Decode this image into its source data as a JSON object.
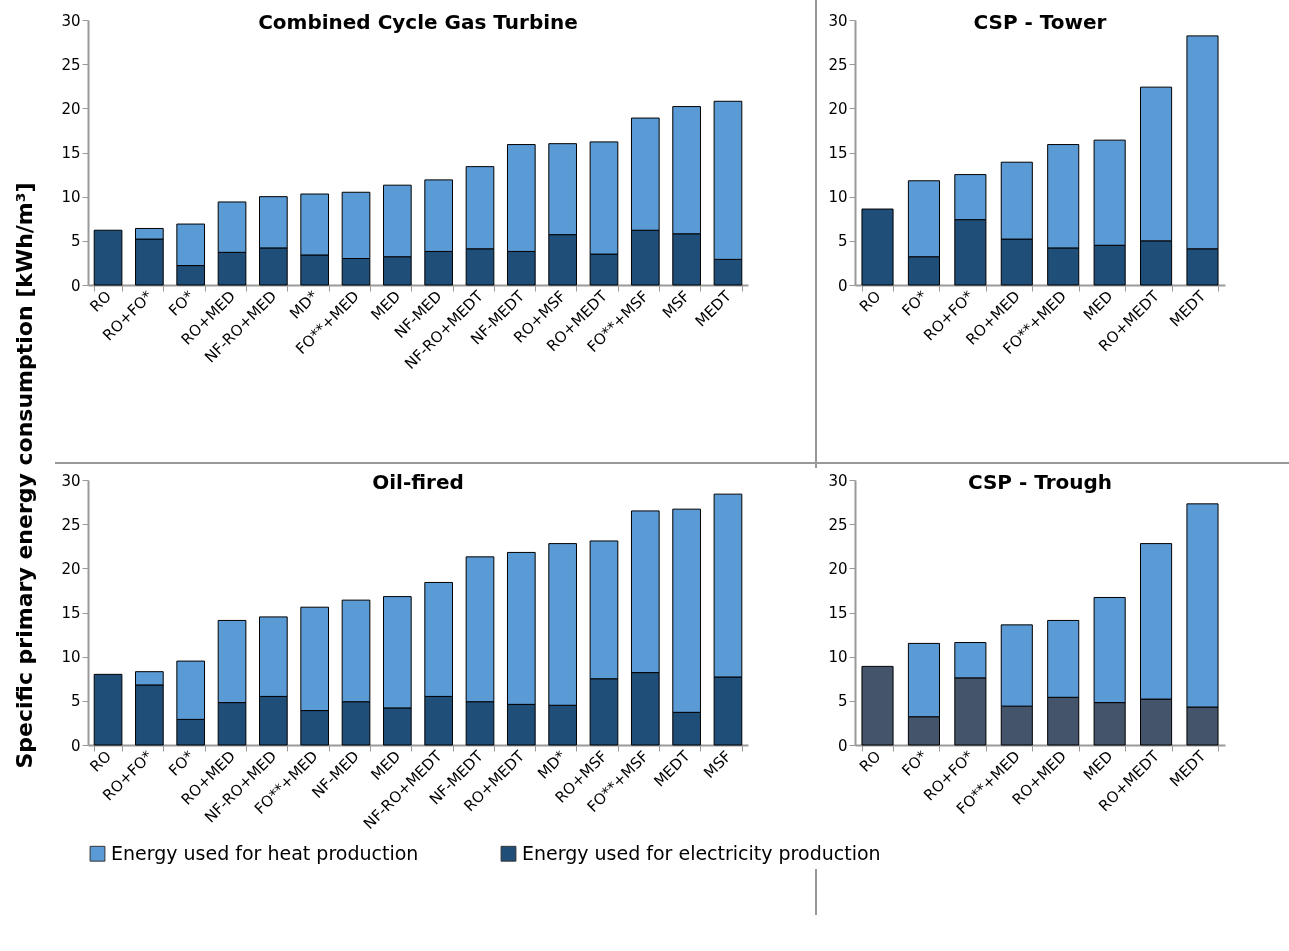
{
  "chart_data": [
    {
      "type": "bar",
      "title": "Combined Cycle Gas Turbine",
      "ylabel": "Specific primary energy consumption [kWh/m³]",
      "stacked": true,
      "grid": false,
      "legend": false,
      "ylim": [
        0,
        30
      ],
      "yticks": [
        0,
        5,
        10,
        15,
        20,
        25,
        30
      ],
      "categories": [
        "RO",
        "RO+FO*",
        "FO*",
        "RO+MED",
        "NF-RO+MED",
        "MD*",
        "FO**+MED",
        "MED",
        "NF-MED",
        "NF-RO+MEDT",
        "NF-MEDT",
        "RO+MSF",
        "RO+MEDT",
        "FO**+MSF",
        "MSF",
        "MEDT"
      ],
      "series": [
        {
          "color": "#1f4e79",
          "values": [
            6.2,
            5.2,
            2.2,
            3.7,
            4.2,
            3.4,
            3.0,
            3.2,
            3.8,
            4.1,
            3.8,
            5.7,
            3.5,
            6.2,
            5.8,
            2.9
          ]
        },
        {
          "color": "#5b9bd5",
          "values": [
            0,
            1.2,
            4.7,
            5.7,
            5.8,
            6.9,
            7.5,
            8.1,
            8.1,
            9.3,
            12.1,
            10.3,
            12.7,
            12.7,
            14.4,
            17.9
          ]
        }
      ]
    },
    {
      "type": "bar",
      "title": "CSP - Tower",
      "stacked": true,
      "grid": false,
      "legend": false,
      "ylim": [
        0,
        30
      ],
      "yticks": [
        0,
        5,
        10,
        15,
        20,
        25,
        30
      ],
      "categories": [
        "RO",
        "FO*",
        "RO+FO*",
        "RO+MED",
        "FO**+MED",
        "MED",
        "RO+MEDT",
        "MEDT"
      ],
      "series": [
        {
          "color": "#1f4e79",
          "values": [
            8.6,
            3.2,
            7.4,
            5.2,
            4.2,
            4.5,
            5.0,
            4.1
          ]
        },
        {
          "color": "#5b9bd5",
          "values": [
            0,
            8.6,
            5.1,
            8.7,
            11.7,
            11.9,
            17.4,
            24.1
          ]
        }
      ]
    },
    {
      "type": "bar",
      "title": "Oil-fired",
      "stacked": true,
      "grid": false,
      "legend": "bottom",
      "ylim": [
        0,
        30
      ],
      "yticks": [
        0,
        5,
        10,
        15,
        20,
        25,
        30
      ],
      "categories": [
        "RO",
        "RO+FO*",
        "FO*",
        "RO+MED",
        "NF-RO+MED",
        "FO**+MED",
        "NF-MED",
        "MED",
        "NF-RO+MEDT",
        "NF-MEDT",
        "RO+MEDT",
        "MD*",
        "RO+MSF",
        "FO**+MSF",
        "MEDT",
        "MSF"
      ],
      "series": [
        {
          "name": "Energy used for electricity production",
          "color": "#1f4e79",
          "values": [
            8.0,
            6.8,
            2.9,
            4.8,
            5.5,
            3.9,
            4.9,
            4.2,
            5.5,
            4.9,
            4.6,
            4.5,
            7.5,
            8.2,
            3.7,
            7.7
          ]
        },
        {
          "name": "Energy used for heat production",
          "color": "#5b9bd5",
          "values": [
            0,
            1.5,
            6.6,
            9.3,
            9.0,
            11.7,
            11.5,
            12.6,
            12.9,
            16.4,
            17.2,
            18.3,
            15.6,
            18.3,
            23.0,
            20.7
          ]
        }
      ]
    },
    {
      "type": "bar",
      "title": "CSP - Trough",
      "stacked": true,
      "grid": false,
      "legend": false,
      "ylim": [
        0,
        30
      ],
      "yticks": [
        0,
        5,
        10,
        15,
        20,
        25,
        30
      ],
      "categories": [
        "RO",
        "FO*",
        "RO+FO*",
        "FO**+MED",
        "RO+MED",
        "MED",
        "RO+MEDT",
        "MEDT"
      ],
      "series": [
        {
          "color": "#44546a",
          "values": [
            8.9,
            3.2,
            7.6,
            4.4,
            5.4,
            4.8,
            5.2,
            4.3
          ]
        },
        {
          "color": "#5b9bd5",
          "values": [
            0,
            8.3,
            4.0,
            9.2,
            8.7,
            11.9,
            17.6,
            23.0
          ]
        }
      ]
    }
  ]
}
